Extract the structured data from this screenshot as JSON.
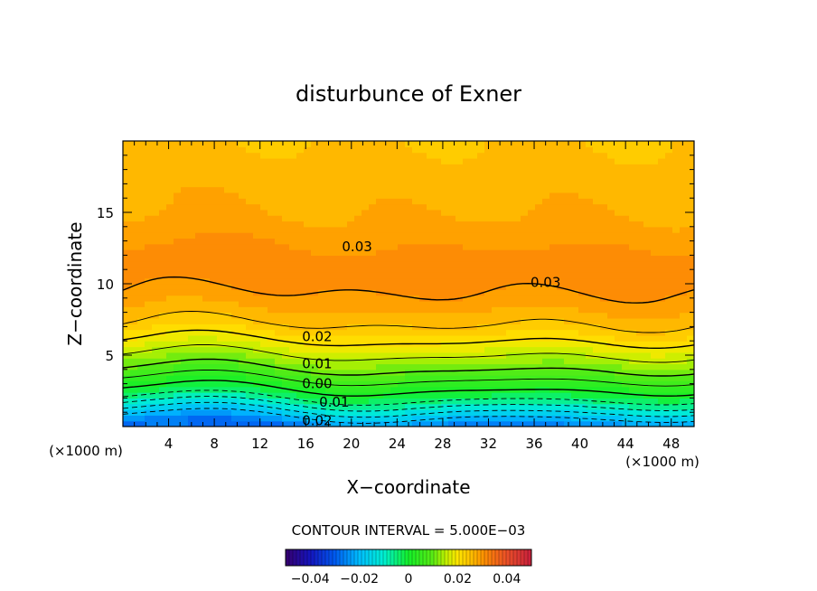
{
  "chart_data": {
    "type": "contour",
    "title": "disturbunce of Exner",
    "xlabel": "X−coordinate",
    "ylabel": "Z−coordinate",
    "x_unit_left": "(×1000 m)",
    "x_unit_right": "(×1000 m)",
    "xlim": [
      0,
      50
    ],
    "ylim": [
      0,
      20
    ],
    "x_ticks": [
      4,
      8,
      12,
      16,
      20,
      24,
      28,
      32,
      36,
      40,
      44,
      48
    ],
    "y_ticks": [
      5,
      10,
      15
    ],
    "contour_interval_text": "CONTOUR INTERVAL = 5.000E−03",
    "contour_labels": [
      {
        "text": "0.03",
        "x": 20.5,
        "z": 12.6
      },
      {
        "text": "0.03",
        "x": 37.0,
        "z": 10.1
      },
      {
        "text": "0.02",
        "x": 17.0,
        "z": 6.3
      },
      {
        "text": "0.01",
        "x": 17.0,
        "z": 4.4
      },
      {
        "text": "0.00",
        "x": 17.0,
        "z": 3.0
      },
      {
        "text": "0.01",
        "x": 18.5,
        "z": 1.7
      },
      {
        "text": "0.02",
        "x": 17.0,
        "z": 0.4
      }
    ],
    "colorbar": {
      "range": [
        -0.05,
        0.05
      ],
      "tick_labels": [
        "−0.04",
        "−0.02",
        "0",
        "0.02",
        "0.04"
      ],
      "tick_values": [
        -0.04,
        -0.02,
        0,
        0.02,
        0.04
      ]
    }
  }
}
